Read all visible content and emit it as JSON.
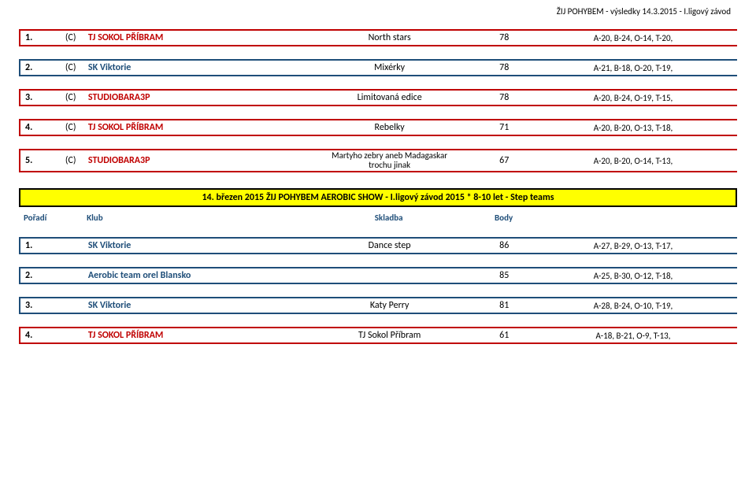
{
  "page_header": "ŽIJ POHYBEM - výsledky 14.3.2015 - I.ligový závod",
  "colors": {
    "band_yellow": "#ffff00",
    "club_blue": "#1f4e79",
    "club_red": "#c00000",
    "border_black": "#000000"
  },
  "section1": {
    "rows": [
      {
        "rank": "1.",
        "mark": "(C)",
        "club": "TJ SOKOL PŘÍBRAM",
        "club_color": "#c00000",
        "song": "North stars",
        "score": "78",
        "detail": "A-20, B-24, O-14, T-20,"
      },
      {
        "rank": "2.",
        "mark": "(C)",
        "club": "SK Viktorie",
        "club_color": "#1f4e79",
        "song": "Mixérky",
        "score": "78",
        "detail": "A-21, B-18, O-20, T-19,"
      },
      {
        "rank": "3.",
        "mark": "(C)",
        "club": "STUDIOBARA3P",
        "club_color": "#c00000",
        "song": "Limitovaná edice",
        "score": "78",
        "detail": "A-20, B-24, O-19, T-15,"
      },
      {
        "rank": "4.",
        "mark": "(C)",
        "club": "TJ SOKOL PŘÍBRAM",
        "club_color": "#c00000",
        "song": "Rebelky",
        "score": "71",
        "detail": "A-20, B-20, O-13, T-18,"
      },
      {
        "rank": "5.",
        "mark": "(C)",
        "club": "STUDIOBARA3P",
        "club_color": "#c00000",
        "song": "Martyho zebry aneb Madagaskar\ntrochu jinak",
        "score": "67",
        "detail": "A-20, B-20, O-14, T-13,",
        "tall": true
      }
    ]
  },
  "section2": {
    "title": "14. březen 2015 ŽIJ POHYBEM AEROBIC SHOW - I.ligový závod 2015 * 8-10 let - Step teams",
    "header": {
      "rank": "Pořadí",
      "club": "Klub",
      "song": "Skladba",
      "score": "Body"
    },
    "rows": [
      {
        "rank": "1.",
        "mark": "",
        "club": "SK Viktorie",
        "club_color": "#1f4e79",
        "song": "Dance step",
        "score": "86",
        "detail": "A-27, B-29, O-13, T-17,"
      },
      {
        "rank": "2.",
        "mark": "",
        "club": "Aerobic team orel Blansko",
        "club_color": "#1f4e79",
        "song": "",
        "score": "85",
        "detail": "A-25, B-30, O-12, T-18,"
      },
      {
        "rank": "3.",
        "mark": "",
        "club": "SK Viktorie",
        "club_color": "#1f4e79",
        "song": "Katy Perry",
        "score": "81",
        "detail": "A-28, B-24, O-10, T-19,"
      },
      {
        "rank": "4.",
        "mark": "",
        "club": "TJ SOKOL PŘÍBRAM",
        "club_color": "#c00000",
        "song": "TJ Sokol Příbram",
        "score": "61",
        "detail": "A-18, B-21, O-9, T-13,"
      }
    ]
  }
}
